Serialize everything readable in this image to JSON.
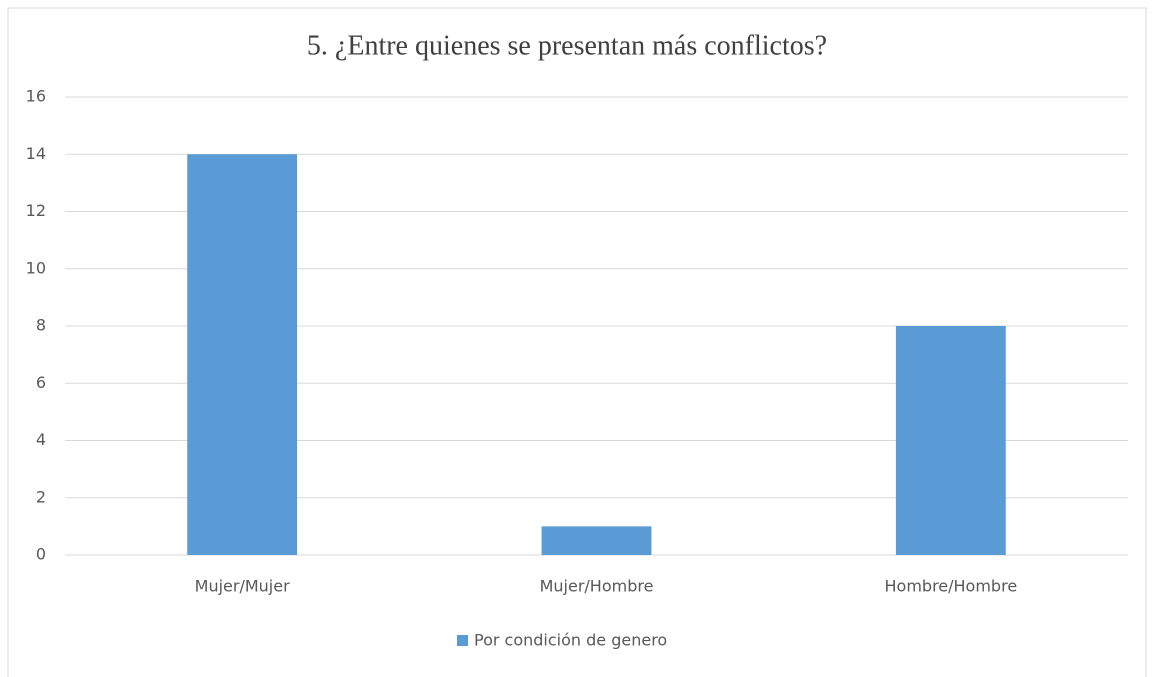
{
  "chart_data": {
    "type": "bar",
    "title": "5. ¿Entre quienes se presentan más conflictos?",
    "categories": [
      "Mujer/Mujer",
      "Mujer/Hombre",
      "Hombre/Hombre"
    ],
    "series": [
      {
        "name": "Por condición de genero",
        "color": "#5b9bd5",
        "values": [
          14,
          1,
          8
        ]
      }
    ],
    "ylim": [
      0,
      16
    ],
    "yticks": [
      0,
      2,
      4,
      6,
      8,
      10,
      12,
      14,
      16
    ],
    "grid": true,
    "legend": "bottom"
  }
}
